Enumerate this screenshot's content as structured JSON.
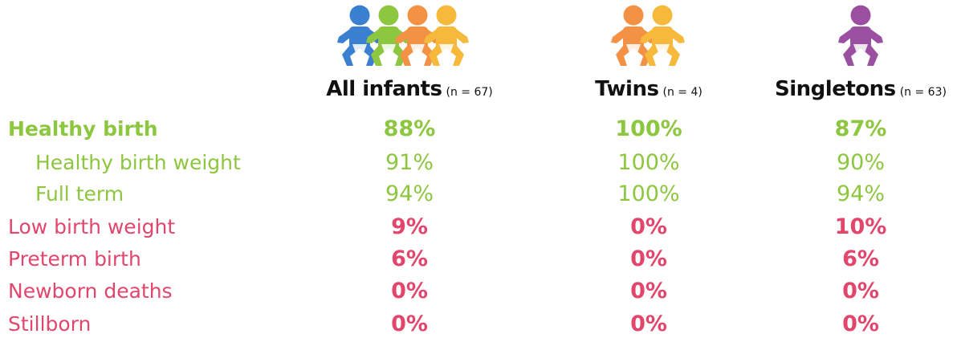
{
  "columns": [
    {
      "title": "All infants",
      "n": "(n = 67)"
    },
    {
      "title": "Twins",
      "n": "(n = 4)"
    },
    {
      "title": "Singletons",
      "n": "(n = 63)"
    }
  ],
  "rows": [
    {
      "label": "Healthy birth",
      "values": [
        "88%",
        "100%",
        "87%"
      ]
    },
    {
      "label": "Healthy birth weight",
      "values": [
        "91%",
        "100%",
        "90%"
      ]
    },
    {
      "label": "Full term",
      "values": [
        "94%",
        "100%",
        "94%"
      ]
    },
    {
      "label": "Low birth weight",
      "values": [
        "9%",
        "0%",
        "10%"
      ]
    },
    {
      "label": "Preterm birth",
      "values": [
        "6%",
        "0%",
        "6%"
      ]
    },
    {
      "label": "Newborn deaths",
      "values": [
        "0%",
        "0%",
        "0%"
      ]
    },
    {
      "label": "Stillborn",
      "values": [
        "0%",
        "0%",
        "0%"
      ]
    }
  ]
}
